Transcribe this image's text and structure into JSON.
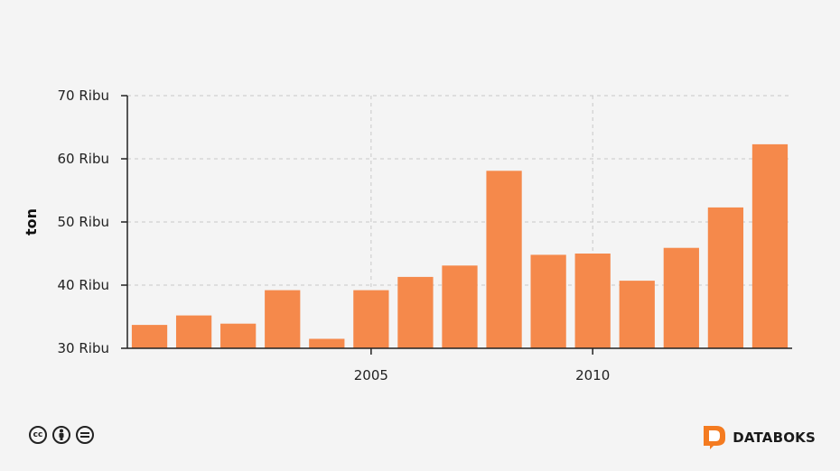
{
  "chart_data": {
    "type": "bar",
    "x": [
      2000,
      2001,
      2002,
      2003,
      2004,
      2005,
      2006,
      2007,
      2008,
      2009,
      2010,
      2011,
      2012,
      2013,
      2014
    ],
    "values": [
      33700,
      35200,
      33900,
      39200,
      31500,
      39200,
      41300,
      43100,
      58100,
      44800,
      45000,
      40700,
      45900,
      52300,
      62300
    ],
    "ylabel": "ton",
    "ylim": [
      30000,
      70000
    ],
    "yticks": [
      30000,
      40000,
      50000,
      60000,
      70000
    ],
    "ytick_labels": [
      "30 Ribu",
      "40 Ribu",
      "50 Ribu",
      "60 Ribu",
      "70 Ribu"
    ],
    "xticks": [
      2005,
      2010
    ],
    "xtick_labels": [
      "2005",
      "2010"
    ],
    "bar_color": "#f5894b",
    "grid": true
  },
  "footer": {
    "license_icons": [
      "cc-icon",
      "by-icon",
      "nd-icon"
    ],
    "brand": "DATABOKS",
    "brand_color": "#f47b20"
  }
}
